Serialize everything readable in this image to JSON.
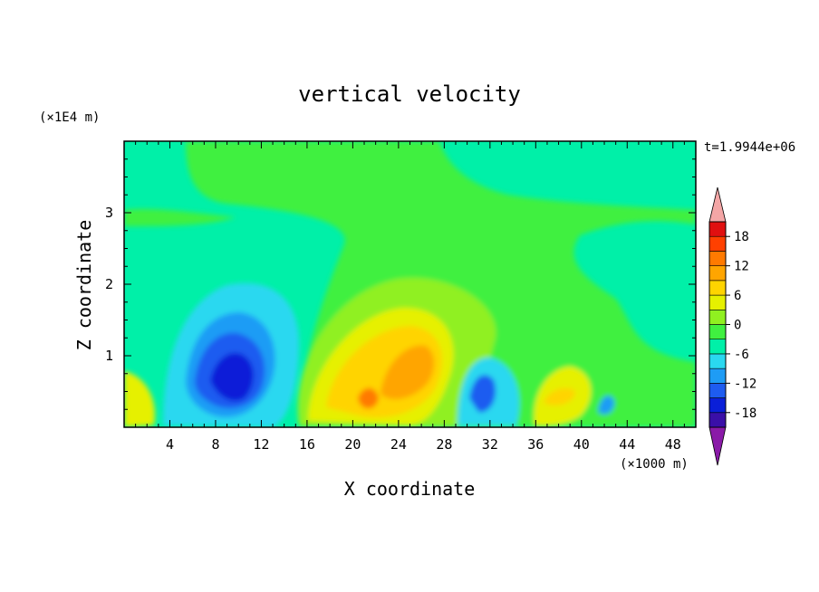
{
  "chart_data": {
    "type": "heatmap",
    "title": "vertical velocity",
    "xlabel": "X coordinate",
    "ylabel": "Z coordinate",
    "x_unit": "(×1000 m)",
    "y_unit": "(×1E4 m)",
    "time_label": "t=1.9944e+06",
    "xlim": [
      0,
      50
    ],
    "ylim": [
      0,
      4
    ],
    "x_ticks": [
      4,
      8,
      12,
      16,
      20,
      24,
      28,
      32,
      36,
      40,
      44,
      48
    ],
    "y_ticks": [
      1,
      2,
      3
    ],
    "colorbar": {
      "levels": [
        -21,
        -18,
        -15,
        -12,
        -9,
        -6,
        -3,
        0,
        3,
        6,
        9,
        12,
        15,
        18,
        21
      ],
      "labels": [
        "18",
        "12",
        "6",
        "0",
        "-6",
        "-12",
        "-18"
      ],
      "colors": [
        "#8a1aa8",
        "#3a0fa8",
        "#0a1fd8",
        "#1e5cf0",
        "#1e9cf5",
        "#2ad8f0",
        "#00f0a8",
        "#40f040",
        "#90f020",
        "#e6f000",
        "#ffd400",
        "#ffa500",
        "#ff7a00",
        "#ff4000",
        "#e01010",
        "#f4a6a6"
      ]
    },
    "features": [
      {
        "region": "downdraft",
        "x": 9.5,
        "z": 0.9,
        "w": -15
      },
      {
        "region": "updraft",
        "x": 23.5,
        "z": 0.9,
        "w": 9
      },
      {
        "region": "downdraft",
        "x": 31.5,
        "z": 0.5,
        "w": -12
      },
      {
        "region": "updraft",
        "x": 38,
        "z": 0.5,
        "w": 6
      },
      {
        "region": "downdraft",
        "x": 42,
        "z": 0.35,
        "w": -9
      }
    ]
  }
}
